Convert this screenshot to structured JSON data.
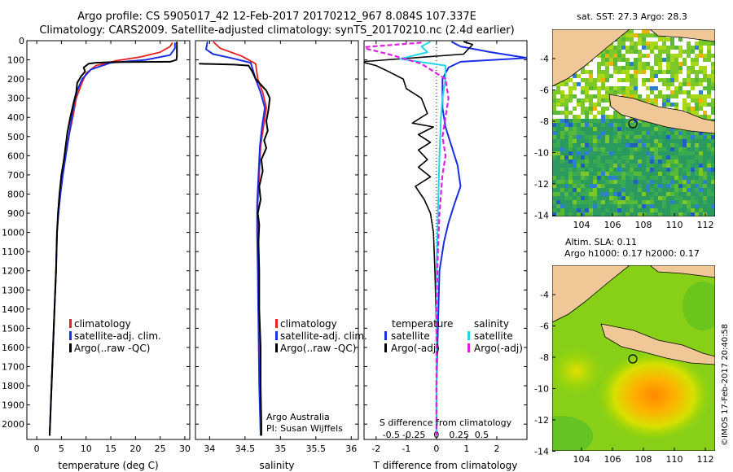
{
  "title": {
    "line1": "Argo profile: CS 5905017_42 12-Feb-2017 20170212_967 8.084S 107.337E",
    "line2": "Climatology: CARS2009. Satellite-adjusted climatology: synTS_20170210.nc (2.4d earlier)"
  },
  "colors": {
    "climatology": "#e82020",
    "satellite": "#1a2ee8",
    "argo": "#000000",
    "sal_sat": "#22d8e8",
    "sal_argo": "#e020e0"
  },
  "chart_data": [
    {
      "type": "line",
      "name": "temperature-profile",
      "xlabel": "temperature (deg C)",
      "ylabel": "",
      "xlim": [
        -2,
        31
      ],
      "ylim": [
        2080,
        0
      ],
      "xticks": [
        "0",
        "5",
        "10",
        "15",
        "20",
        "25",
        "30"
      ],
      "xtick_values": [
        0,
        5,
        10,
        15,
        20,
        25,
        30
      ],
      "yticks": [
        "0",
        "100",
        "200",
        "300",
        "400",
        "500",
        "600",
        "700",
        "800",
        "900",
        "1000",
        "1100",
        "1200",
        "1300",
        "1400",
        "1500",
        "1600",
        "1700",
        "1800",
        "1900",
        "2000"
      ],
      "ytick_values": [
        0,
        100,
        200,
        300,
        400,
        500,
        600,
        700,
        800,
        900,
        1000,
        1100,
        1200,
        1300,
        1400,
        1500,
        1600,
        1700,
        1800,
        1900,
        2000
      ],
      "legend": [
        "climatology",
        "satellite-adj. clim.",
        "Argo(..raw -QC)"
      ],
      "series": [
        {
          "name": "climatology",
          "points": [
            [
              27.5,
              10
            ],
            [
              27,
              30
            ],
            [
              25,
              60
            ],
            [
              21,
              85
            ],
            [
              16,
              105
            ],
            [
              12,
              130
            ],
            [
              10,
              170
            ],
            [
              9,
              230
            ],
            [
              8,
              300
            ],
            [
              7.3,
              400
            ],
            [
              6.5,
              500
            ],
            [
              5.8,
              600
            ],
            [
              5.2,
              700
            ],
            [
              4.7,
              800
            ],
            [
              4.4,
              900
            ],
            [
              4.1,
              1000
            ],
            [
              3.9,
              1200
            ],
            [
              3.6,
              1400
            ],
            [
              3.3,
              1600
            ],
            [
              3,
              1800
            ],
            [
              2.7,
              2000
            ],
            [
              2.6,
              2060
            ]
          ]
        },
        {
          "name": "satellite-adj. clim.",
          "points": [
            [
              28,
              10
            ],
            [
              28,
              40
            ],
            [
              27,
              75
            ],
            [
              22,
              100
            ],
            [
              15,
              115
            ],
            [
              11,
              150
            ],
            [
              9.2,
              200
            ],
            [
              8.2,
              260
            ],
            [
              7.6,
              320
            ],
            [
              6.8,
              450
            ],
            [
              6,
              580
            ],
            [
              5.3,
              700
            ],
            [
              4.8,
              800
            ],
            [
              4.4,
              900
            ],
            [
              4.1,
              1000
            ],
            [
              3.9,
              1200
            ],
            [
              3.6,
              1400
            ],
            [
              3.3,
              1600
            ],
            [
              3,
              1800
            ],
            [
              2.7,
              2000
            ],
            [
              2.6,
              2060
            ]
          ]
        },
        {
          "name": "Argo(..raw -QC)",
          "points": [
            [
              28.4,
              5
            ],
            [
              28.4,
              80
            ],
            [
              28.3,
              100
            ],
            [
              27,
              110
            ],
            [
              15,
              112
            ],
            [
              12,
              115
            ],
            [
              10.5,
              120
            ],
            [
              9.5,
              140
            ],
            [
              9.8,
              160
            ],
            [
              9,
              185
            ],
            [
              8.2,
              220
            ],
            [
              8,
              270
            ],
            [
              7.5,
              320
            ],
            [
              6.8,
              400
            ],
            [
              6.2,
              480
            ],
            [
              5.8,
              560
            ],
            [
              5.5,
              620
            ],
            [
              5,
              700
            ],
            [
              4.6,
              800
            ],
            [
              4.3,
              900
            ],
            [
              4.1,
              1000
            ],
            [
              3.9,
              1200
            ],
            [
              3.6,
              1400
            ],
            [
              3.3,
              1600
            ],
            [
              3,
              1800
            ],
            [
              2.7,
              2000
            ],
            [
              2.6,
              2060
            ]
          ]
        }
      ]
    },
    {
      "type": "line",
      "name": "salinity-profile",
      "xlabel": "salinity",
      "xlim": [
        33.8,
        36.1
      ],
      "ylim": [
        2080,
        0
      ],
      "xticks": [
        "34",
        "34.5",
        "35",
        "35.5",
        "36"
      ],
      "xtick_values": [
        34,
        34.5,
        35,
        35.5,
        36
      ],
      "legend": [
        "climatology",
        "satellite-adj. clim.",
        "Argo(..raw -QC)"
      ],
      "annotations": [
        "Argo Australia",
        "PI: Susan Wijffels"
      ],
      "series": [
        {
          "name": "climatology",
          "points": [
            [
              34.05,
              5
            ],
            [
              34.15,
              40
            ],
            [
              34.45,
              80
            ],
            [
              34.65,
              120
            ],
            [
              34.68,
              200
            ],
            [
              34.75,
              270
            ],
            [
              34.8,
              350
            ],
            [
              34.76,
              450
            ],
            [
              34.72,
              550
            ],
            [
              34.7,
              700
            ],
            [
              34.68,
              850
            ],
            [
              34.68,
              1000
            ],
            [
              34.69,
              1200
            ],
            [
              34.7,
              1500
            ],
            [
              34.71,
              1800
            ],
            [
              34.72,
              2060
            ]
          ]
        },
        {
          "name": "satellite-adj. clim.",
          "points": [
            [
              33.97,
              5
            ],
            [
              33.95,
              45
            ],
            [
              34.05,
              70
            ],
            [
              34.3,
              90
            ],
            [
              34.58,
              115
            ],
            [
              34.65,
              200
            ],
            [
              34.72,
              270
            ],
            [
              34.78,
              350
            ],
            [
              34.74,
              450
            ],
            [
              34.71,
              550
            ],
            [
              34.69,
              700
            ],
            [
              34.67,
              850
            ],
            [
              34.67,
              1000
            ],
            [
              34.68,
              1200
            ],
            [
              34.69,
              1500
            ],
            [
              34.7,
              1800
            ],
            [
              34.72,
              2060
            ]
          ]
        },
        {
          "name": "Argo(..raw -QC)",
          "points": [
            [
              33.85,
              120
            ],
            [
              34.35,
              125
            ],
            [
              34.55,
              130
            ],
            [
              34.6,
              160
            ],
            [
              34.65,
              200
            ],
            [
              34.8,
              260
            ],
            [
              34.85,
              300
            ],
            [
              34.83,
              360
            ],
            [
              34.8,
              420
            ],
            [
              34.82,
              470
            ],
            [
              34.77,
              520
            ],
            [
              34.8,
              560
            ],
            [
              34.73,
              620
            ],
            [
              34.75,
              680
            ],
            [
              34.7,
              760
            ],
            [
              34.72,
              830
            ],
            [
              34.68,
              900
            ],
            [
              34.7,
              960
            ],
            [
              34.69,
              1050
            ],
            [
              34.7,
              1200
            ],
            [
              34.7,
              1400
            ],
            [
              34.72,
              1600
            ],
            [
              34.72,
              1800
            ],
            [
              34.73,
              2000
            ],
            [
              34.73,
              2060
            ]
          ]
        }
      ]
    },
    {
      "type": "line",
      "name": "difference-profile",
      "xlabel": "T difference from climatology",
      "xlabel_top": "S difference from climatology",
      "xlim": [
        -2.4,
        3
      ],
      "ylim": [
        2080,
        0
      ],
      "xticks": [
        "-2",
        "-1",
        "0",
        "1",
        "2"
      ],
      "xtick_values": [
        -2,
        -1,
        0,
        1,
        2
      ],
      "top_ticks": [
        "-0.5",
        "-0.25",
        "0",
        "0.25",
        "0.5"
      ],
      "top_tick_values": [
        -1.5,
        -0.75,
        0,
        0.75,
        1.5
      ],
      "legend_left_title": "temperature",
      "legend_right_title": "salinity",
      "legend_left": [
        "satellite",
        "Argo(-adj)"
      ],
      "legend_right": [
        "satellite",
        "Argo(-adj)"
      ],
      "series": [
        {
          "name": "temperature satellite",
          "points": [
            [
              0.5,
              5
            ],
            [
              0.8,
              30
            ],
            [
              1.8,
              60
            ],
            [
              3,
              90
            ],
            [
              0.8,
              110
            ],
            [
              0.4,
              140
            ],
            [
              0.2,
              200
            ],
            [
              0.2,
              350
            ],
            [
              0.3,
              450
            ],
            [
              0.4,
              500
            ],
            [
              0.5,
              550
            ],
            [
              0.7,
              650
            ],
            [
              0.8,
              760
            ],
            [
              0.6,
              850
            ],
            [
              0.4,
              950
            ],
            [
              0.25,
              1050
            ],
            [
              0.1,
              1200
            ],
            [
              0.05,
              1500
            ],
            [
              0,
              1800
            ],
            [
              0,
              2060
            ]
          ]
        },
        {
          "name": "temperature Argo(-adj)",
          "points": [
            [
              0.9,
              5
            ],
            [
              1.2,
              20
            ],
            [
              0.9,
              70
            ],
            [
              -2.5,
              110
            ],
            [
              -2,
              130
            ],
            [
              -1.6,
              160
            ],
            [
              -1.1,
              200
            ],
            [
              -1,
              250
            ],
            [
              -0.5,
              300
            ],
            [
              -0.3,
              380
            ],
            [
              -0.8,
              430
            ],
            [
              -0.1,
              450
            ],
            [
              -0.6,
              490
            ],
            [
              -0.2,
              530
            ],
            [
              -0.6,
              570
            ],
            [
              -0.3,
              620
            ],
            [
              -0.6,
              660
            ],
            [
              -0.2,
              710
            ],
            [
              -0.7,
              760
            ],
            [
              -0.4,
              830
            ],
            [
              -0.2,
              900
            ],
            [
              -0.1,
              1000
            ],
            [
              -0.05,
              1200
            ],
            [
              0,
              1500
            ],
            [
              0,
              2060
            ]
          ]
        },
        {
          "name": "salinity satellite",
          "points": [
            [
              -0.2,
              5
            ],
            [
              -0.5,
              30
            ],
            [
              -0.3,
              60
            ],
            [
              -1.2,
              95
            ],
            [
              0.3,
              130
            ],
            [
              0.3,
              200
            ],
            [
              0.2,
              300
            ],
            [
              0.15,
              400
            ],
            [
              0.1,
              600
            ],
            [
              0.05,
              900
            ],
            [
              0,
              1200
            ],
            [
              0,
              1600
            ],
            [
              0,
              2060
            ]
          ]
        },
        {
          "name": "salinity Argo(-adj)",
          "points": [
            [
              -0.5,
              10
            ],
            [
              -2.5,
              35
            ],
            [
              -1.6,
              70
            ],
            [
              -0.5,
              120
            ],
            [
              0.3,
              200
            ],
            [
              0.4,
              300
            ],
            [
              0.3,
              400
            ],
            [
              0.2,
              500
            ],
            [
              0.3,
              600
            ],
            [
              0.2,
              700
            ],
            [
              0.15,
              800
            ],
            [
              0.1,
              900
            ],
            [
              0.05,
              1100
            ],
            [
              0,
              1400
            ],
            [
              0,
              1800
            ],
            [
              0,
              2060
            ]
          ]
        }
      ]
    }
  ],
  "maps": {
    "sst": {
      "title": "sat. SST: 27.3 Argo: 28.3",
      "xticks": [
        "104",
        "106",
        "108",
        "110",
        "112"
      ],
      "yticks": [
        "-4",
        "-6",
        "-8",
        "-10",
        "-12",
        "-14"
      ]
    },
    "sla": {
      "title_line1": "Altim. SLA: 0.11",
      "title_line2": "Argo h1000: 0.17 h2000: 0.17",
      "xticks": [
        "104",
        "106",
        "108",
        "110",
        "112"
      ],
      "yticks": [
        "-4",
        "-6",
        "-8",
        "-10",
        "-12",
        "-14"
      ]
    }
  },
  "credit": "©IMOS 17-Feb-2017 20:40:58"
}
